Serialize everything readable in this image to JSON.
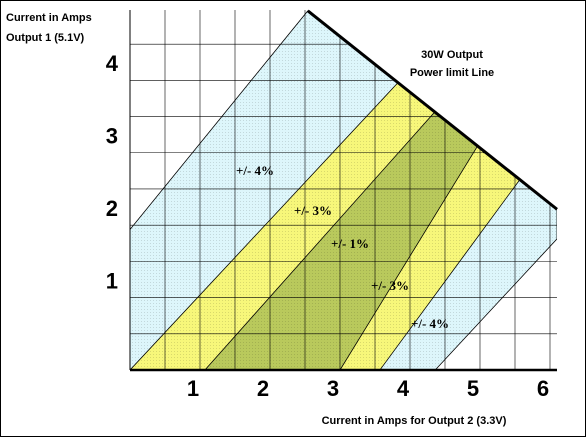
{
  "chart_data": {
    "type": "region",
    "ylabel": [
      "Current in Amps",
      "Output 1 (5.1V)"
    ],
    "xlabel": "Current in Amps for Output 2 (3.3V)",
    "annotation": [
      "30W Output",
      "Power limit Line"
    ],
    "xlim": [
      0,
      6.1
    ],
    "ylim": [
      0,
      4.93
    ],
    "xticks": [
      1,
      2,
      3,
      4,
      5,
      6
    ],
    "yticks": [
      1,
      2,
      3,
      4
    ],
    "xgrid": [
      0.5,
      1,
      1.5,
      2,
      2.5,
      3,
      3.5,
      4,
      4.5,
      5,
      5.5,
      6
    ],
    "ygrid": [
      0.5,
      1,
      1.5,
      2,
      2.5,
      3,
      3.5,
      4,
      4.5
    ],
    "grid": true,
    "regions": [
      {
        "label": "+/- 4%",
        "color": "#ddf6fb",
        "x": [
          0,
          2.54,
          6.1,
          6.1,
          4.36,
          0
        ],
        "y": [
          1.94,
          4.96,
          2.22,
          1.81,
          0,
          0
        ]
      },
      {
        "label": "+/- 3%",
        "color": "#f7f77a",
        "x": [
          0,
          3.83,
          5.57,
          3.57
        ],
        "y": [
          0,
          3.97,
          2.63,
          0
        ]
      },
      {
        "label": "+/- 1%",
        "color": "#b9c95c",
        "x": [
          1.07,
          4.36,
          4.97,
          3.0
        ],
        "y": [
          0,
          3.57,
          3.1,
          0
        ]
      }
    ],
    "band_labels": [
      "+/- 4%",
      "+/- 3%",
      "+/- 1%",
      "+/- 3%",
      "+/- 4%"
    ],
    "power_limit": {
      "x": [
        2.54,
        6.1
      ],
      "y": [
        4.96,
        2.22
      ]
    }
  }
}
